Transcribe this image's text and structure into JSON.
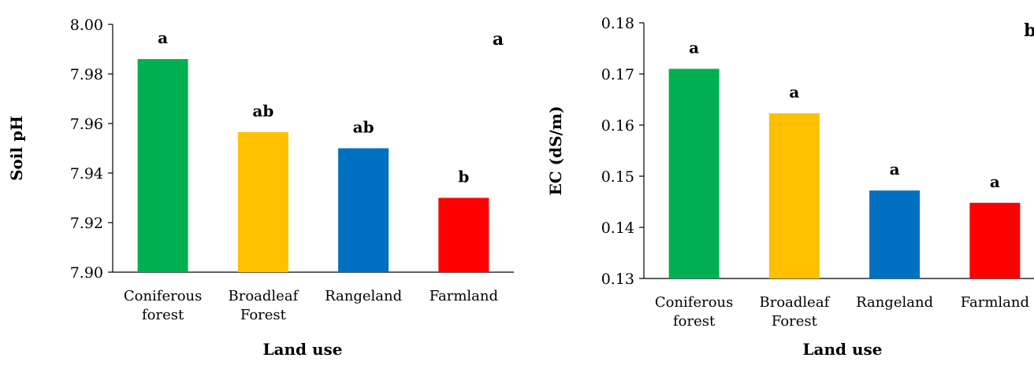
{
  "chart_data": [
    {
      "type": "bar",
      "panel_label": "a",
      "categories": [
        [
          "Coniferous",
          "forest"
        ],
        [
          "Broadleaf",
          "Forest"
        ],
        [
          "Rangeland"
        ],
        [
          "Farmland"
        ]
      ],
      "values": [
        7.986,
        7.9565,
        7.95,
        7.93
      ],
      "sig_letters": [
        "a",
        "ab",
        "ab",
        "b"
      ],
      "colors": [
        "#00b050",
        "#ffc000",
        "#0070c0",
        "#ff0000"
      ],
      "xlabel": "Land use",
      "ylabel": "Soil pH",
      "ylim": [
        7.9,
        8.0
      ],
      "yticks": [
        "7.90",
        "7.92",
        "7.94",
        "7.96",
        "7.98",
        "8.00"
      ],
      "grid": false,
      "legend": "none"
    },
    {
      "type": "bar",
      "panel_label": "b",
      "categories": [
        [
          "Coniferous",
          "forest"
        ],
        [
          "Broadleaf",
          "Forest"
        ],
        [
          "Rangeland"
        ],
        [
          "Farmland"
        ]
      ],
      "values": [
        0.171,
        0.1623,
        0.1472,
        0.1448
      ],
      "sig_letters": [
        "a",
        "a",
        "a",
        "a"
      ],
      "colors": [
        "#00b050",
        "#ffc000",
        "#0070c0",
        "#ff0000"
      ],
      "xlabel": "Land use",
      "ylabel": "EC (dS/m)",
      "ylim": [
        0.13,
        0.18
      ],
      "yticks": [
        "0.13",
        "0.14",
        "0.15",
        "0.16",
        "0.17",
        "0.18"
      ],
      "grid": false,
      "legend": "none"
    }
  ]
}
